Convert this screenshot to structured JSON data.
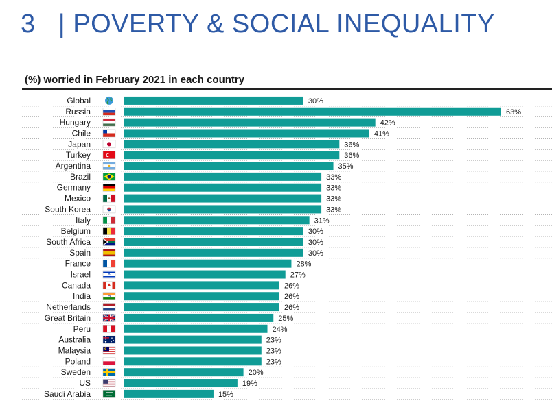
{
  "page": {
    "title": "3   | POVERTY & SOCIAL INEQUALITY",
    "subtitle": "(%) worried in February 2021 in each country"
  },
  "colors": {
    "bar": "#109c96",
    "title": "#2e5aa6",
    "gridline": "#9a9a9a"
  },
  "chart_data": {
    "type": "bar",
    "orientation": "horizontal",
    "title": "(%) worried in February 2021 in each country",
    "value_suffix": "%",
    "xlim": [
      0,
      63
    ],
    "grid": "dotted row separators",
    "categories": [
      "Global",
      "Russia",
      "Hungary",
      "Chile",
      "Japan",
      "Turkey",
      "Argentina",
      "Brazil",
      "Germany",
      "Mexico",
      "South Korea",
      "Italy",
      "Belgium",
      "South Africa",
      "Spain",
      "France",
      "Israel",
      "Canada",
      "India",
      "Netherlands",
      "Great Britain",
      "Peru",
      "Australia",
      "Malaysia",
      "Poland",
      "Sweden",
      "US",
      "Saudi Arabia"
    ],
    "values": [
      30,
      63,
      42,
      41,
      36,
      36,
      35,
      33,
      33,
      33,
      33,
      31,
      30,
      30,
      30,
      28,
      27,
      26,
      26,
      26,
      25,
      24,
      23,
      23,
      23,
      20,
      19,
      15
    ],
    "labels": [
      "30%",
      "63%",
      "42%",
      "41%",
      "36%",
      "36%",
      "35%",
      "33%",
      "33%",
      "33%",
      "33%",
      "31%",
      "30%",
      "30%",
      "30%",
      "28%",
      "27%",
      "26%",
      "26%",
      "26%",
      "25%",
      "24%",
      "23%",
      "23%",
      "23%",
      "20%",
      "19%",
      "15%"
    ],
    "flags": [
      "globe-icon",
      "flag-russia",
      "flag-hungary",
      "flag-chile",
      "flag-japan",
      "flag-turkey",
      "flag-argentina",
      "flag-brazil",
      "flag-germany",
      "flag-mexico",
      "flag-south-korea",
      "flag-italy",
      "flag-belgium",
      "flag-south-africa",
      "flag-spain",
      "flag-france",
      "flag-israel",
      "flag-canada",
      "flag-india",
      "flag-netherlands",
      "flag-great-britain",
      "flag-peru",
      "flag-australia",
      "flag-malaysia",
      "flag-poland",
      "flag-sweden",
      "flag-us",
      "flag-saudi-arabia"
    ]
  }
}
